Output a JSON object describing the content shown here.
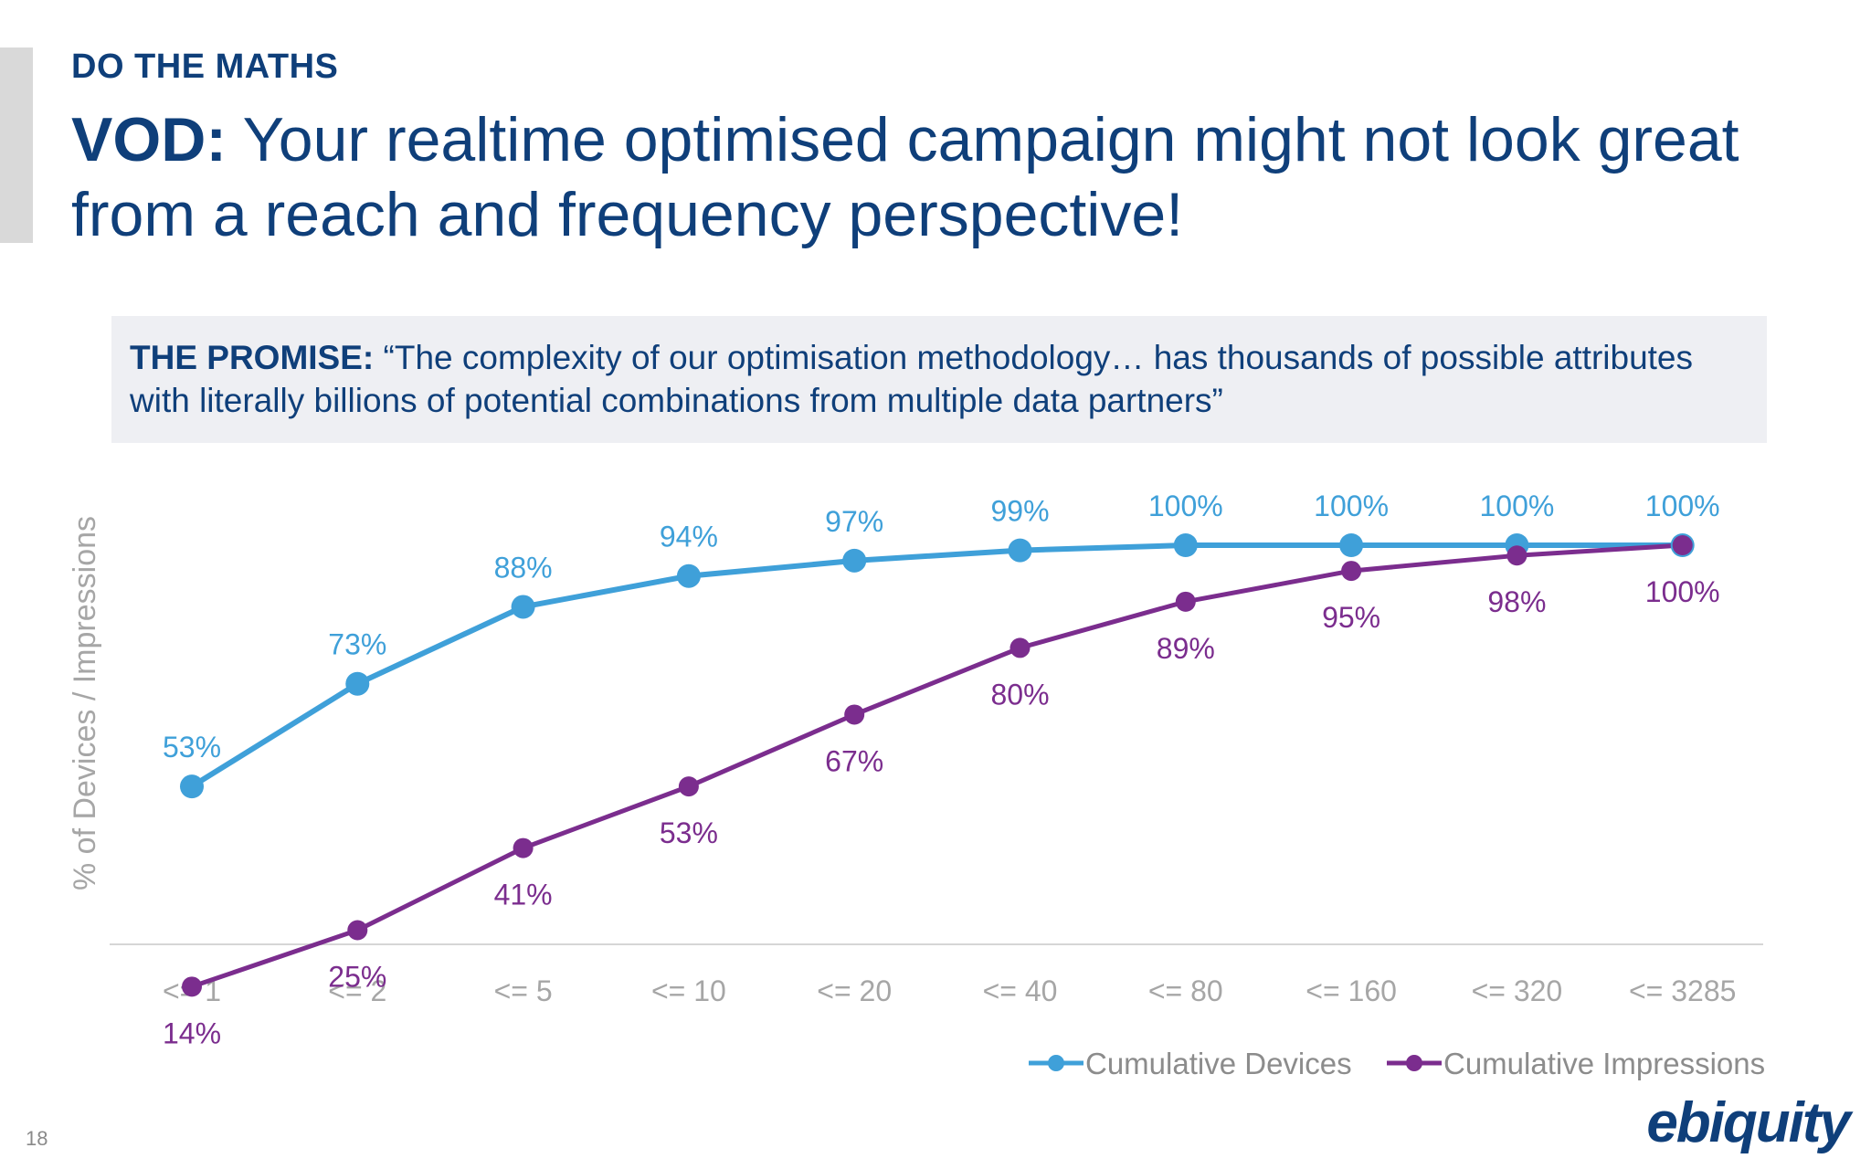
{
  "header": {
    "kicker": "DO THE MATHS",
    "title_bold": "VOD:",
    "title_rest": " Your realtime optimised campaign might not look great from a reach and frequency perspective!"
  },
  "promise": {
    "label": "THE PROMISE:",
    "quote": " “The complexity of our optimisation methodology… has thousands of possible attributes with literally billions of potential combinations from multiple data partners”"
  },
  "chart_data": {
    "type": "line",
    "title": "",
    "xlabel": "",
    "ylabel": "% of Devices / Impressions",
    "ylim": [
      0,
      100
    ],
    "categories": [
      "<= 1",
      "<= 2",
      "<= 5",
      "<= 10",
      "<= 20",
      "<= 40",
      "<= 80",
      "<= 160",
      "<= 320",
      "<= 3285"
    ],
    "series": [
      {
        "name": "Cumulative Devices",
        "color": "#3fa0d9",
        "values": [
          53,
          73,
          88,
          94,
          97,
          99,
          100,
          100,
          100,
          100
        ],
        "labels": [
          "53%",
          "73%",
          "88%",
          "94%",
          "97%",
          "99%",
          "100%",
          "100%",
          "100%",
          "100%"
        ]
      },
      {
        "name": "Cumulative Impressions",
        "color": "#7b2d8e",
        "values": [
          14,
          25,
          41,
          53,
          67,
          80,
          89,
          95,
          98,
          100
        ],
        "labels": [
          "14%",
          "25%",
          "41%",
          "53%",
          "67%",
          "80%",
          "89%",
          "95%",
          "98%",
          "100%"
        ]
      }
    ],
    "legend": "bottom-right",
    "grid": false
  },
  "footer": {
    "page_number": "18",
    "logo_text": "ebiquity"
  }
}
